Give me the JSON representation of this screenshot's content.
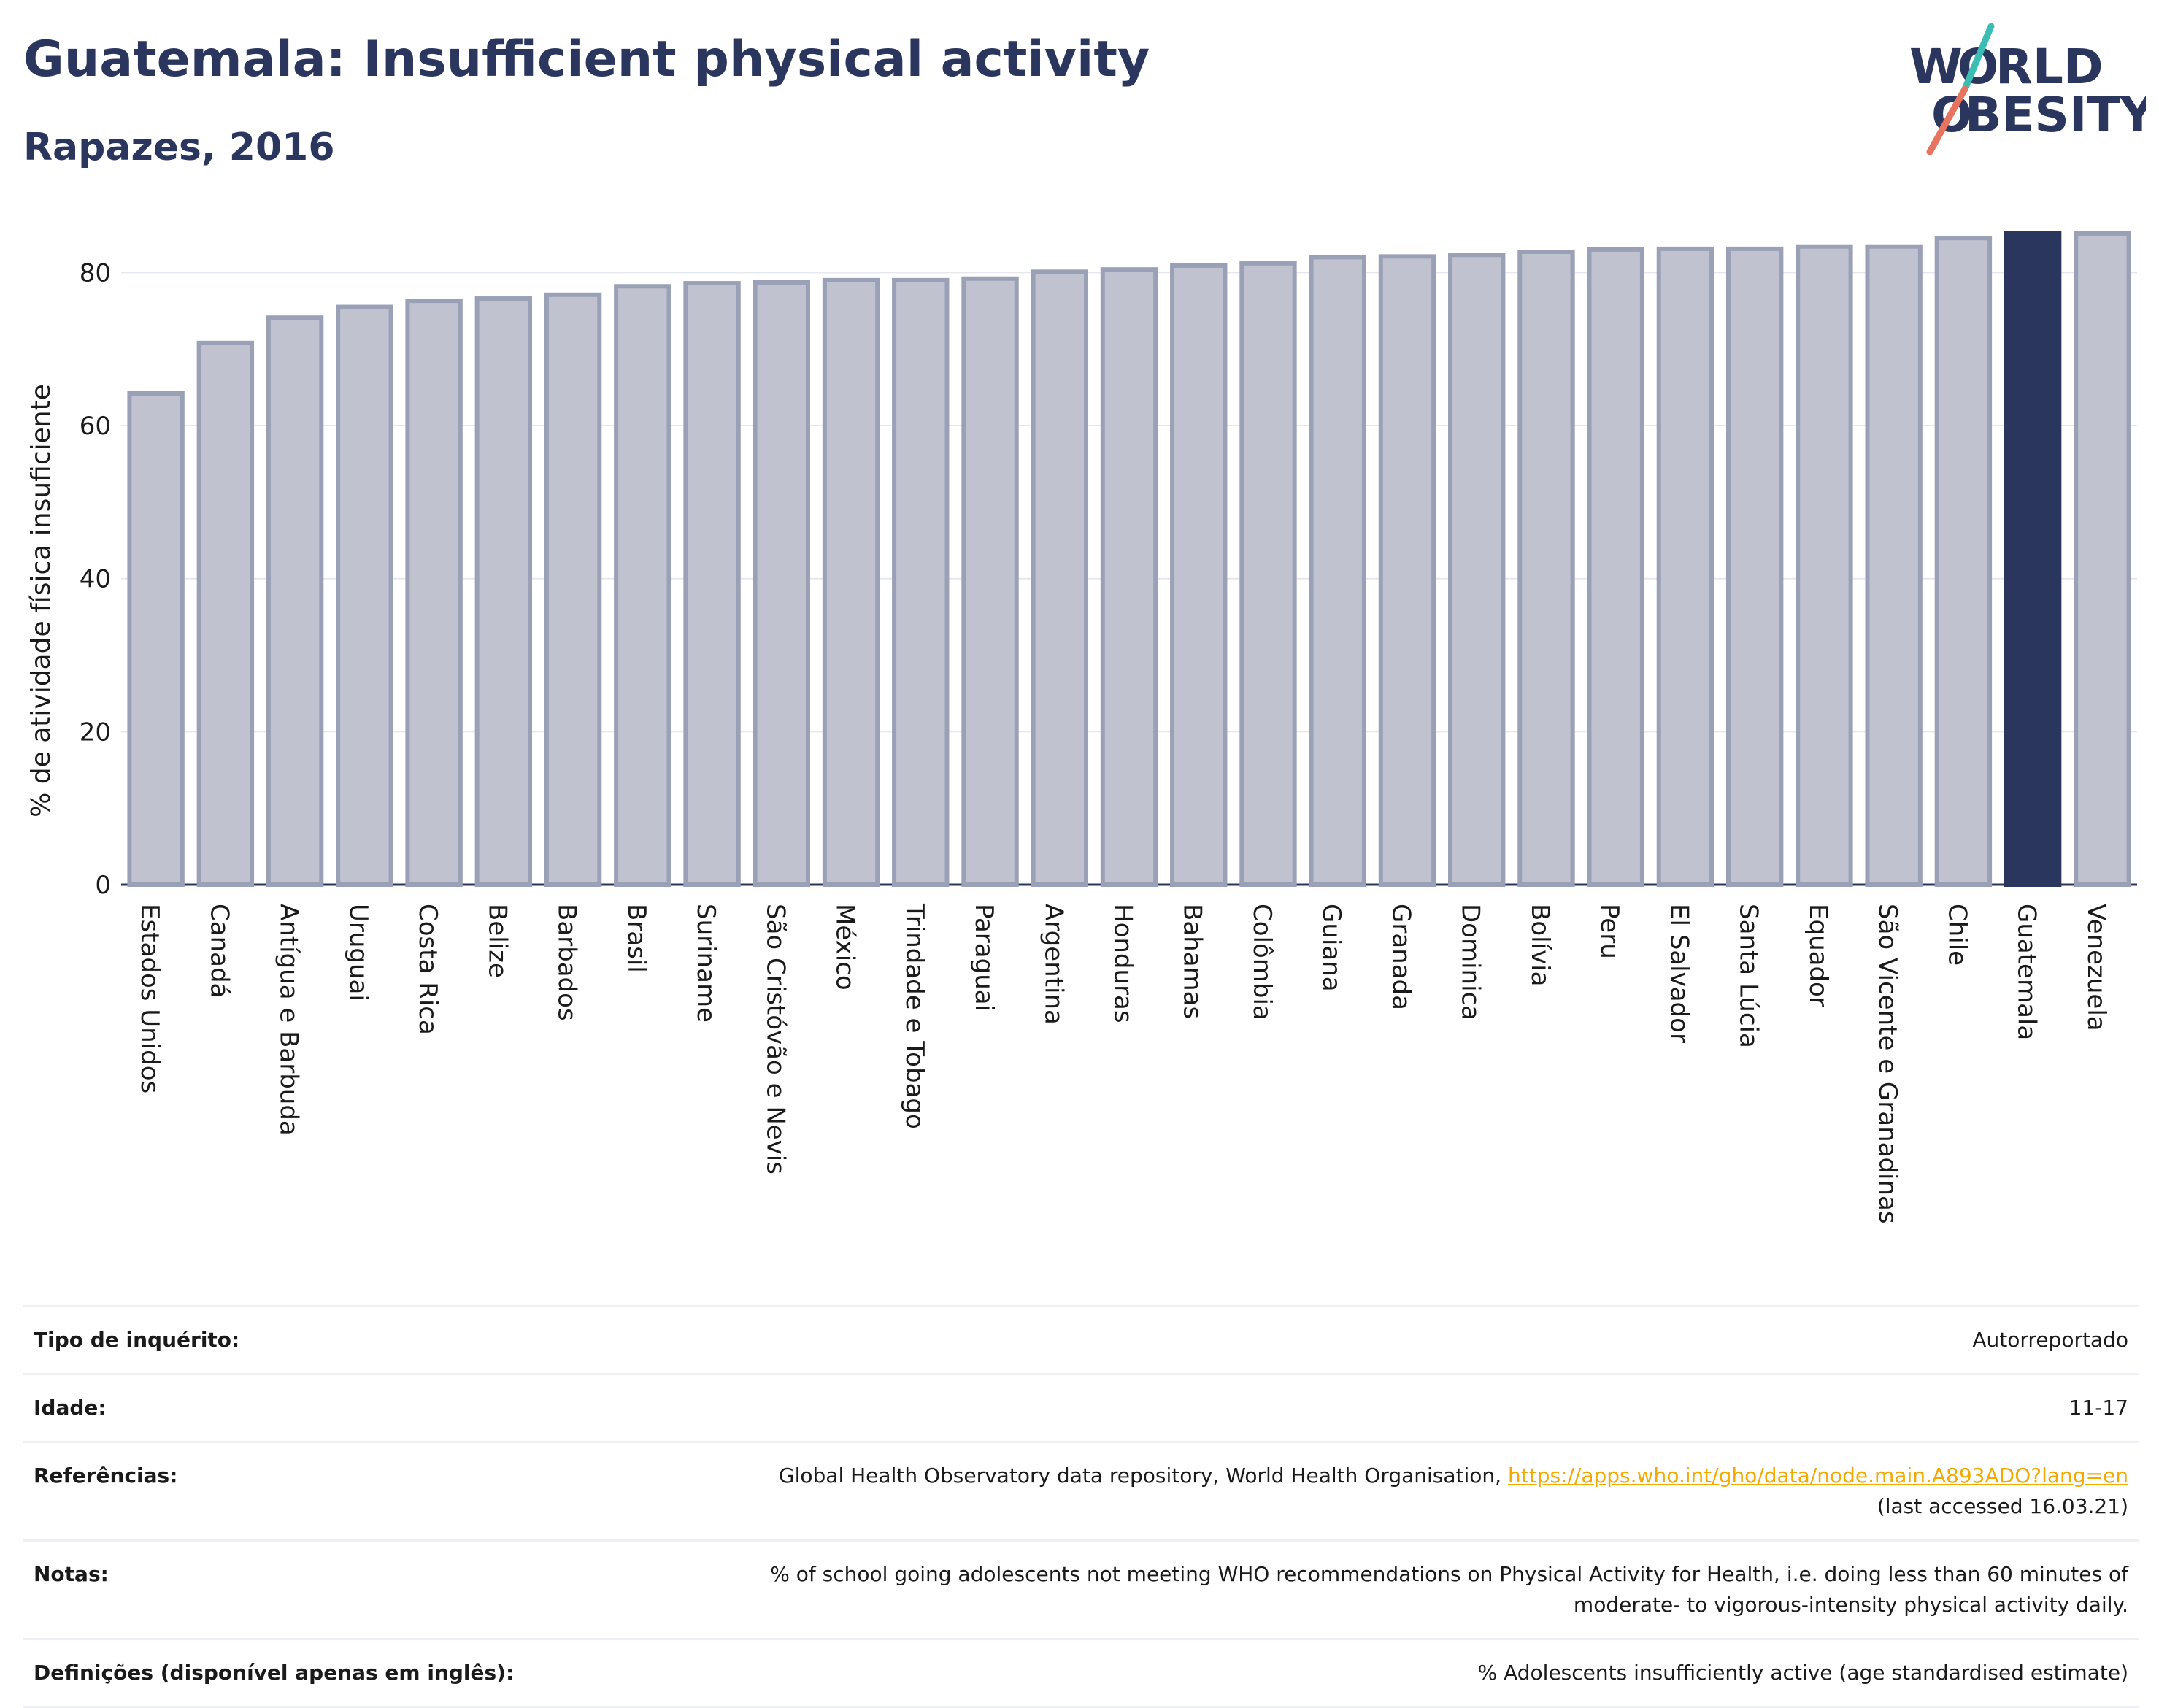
{
  "title": "Guatemala: Insufficient physical activity",
  "subtitle": "Rapazes, 2016",
  "logo": {
    "line1": "WORLD",
    "line2": "OBESITY"
  },
  "colors": {
    "highlight": "#2b365f",
    "bar": "#c0c3cf",
    "bar_border": "#9aa0b6",
    "title": "#2b365f",
    "link": "#f2a900",
    "accent_teal": "#3bbdb4",
    "accent_coral": "#e8735f"
  },
  "chart_data": {
    "type": "bar",
    "ylabel": "% de atividade física insuficiente",
    "ylim": [
      0,
      87
    ],
    "yticks": [
      0,
      20,
      40,
      60,
      80
    ],
    "grid": true,
    "highlight": "Guatemala",
    "categories": [
      "Estados Unidos",
      "Canadá",
      "Antígua e Barbuda",
      "Uruguai",
      "Costa Rica",
      "Belize",
      "Barbados",
      "Brasil",
      "Suriname",
      "São Cristóvão e Nevis",
      "México",
      "Trindade e Tobago",
      "Paraguai",
      "Argentina",
      "Honduras",
      "Bahamas",
      "Colômbia",
      "Guiana",
      "Granada",
      "Dominica",
      "Bolívia",
      "Peru",
      "El Salvador",
      "Santa Lúcia",
      "Equador",
      "São Vicente e Granadinas",
      "Chile",
      "Guatemala",
      "Venezuela"
    ],
    "values": [
      64.2,
      70.8,
      74.1,
      75.5,
      76.3,
      76.6,
      77.1,
      78.2,
      78.6,
      78.7,
      79.0,
      79.0,
      79.2,
      80.1,
      80.4,
      80.9,
      81.2,
      82.0,
      82.1,
      82.3,
      82.7,
      83.0,
      83.1,
      83.1,
      83.4,
      83.4,
      84.5,
      85.1,
      85.1
    ]
  },
  "info": {
    "survey_type": {
      "label": "Tipo de inquérito:",
      "value": "Autorreportado"
    },
    "age": {
      "label": "Idade:",
      "value": "11-17"
    },
    "references": {
      "label": "Referências:",
      "text": "Global Health Observatory data repository, World Health Organisation,",
      "link": "https://apps.who.int/gho/data/node.main.A893ADO?lang=en",
      "accessed": "(last accessed 16.03.21)"
    },
    "notes": {
      "label": "Notas:",
      "line1": "% of school going adolescents not meeting WHO recommendations on Physical Activity for Health, i.e. doing less than 60 minutes of",
      "line2": "moderate- to vigorous-intensity physical activity daily."
    },
    "definitions": {
      "label": "Definições (disponível apenas em inglês):",
      "value": "% Adolescents insufficiently active (age standardised estimate)"
    }
  }
}
